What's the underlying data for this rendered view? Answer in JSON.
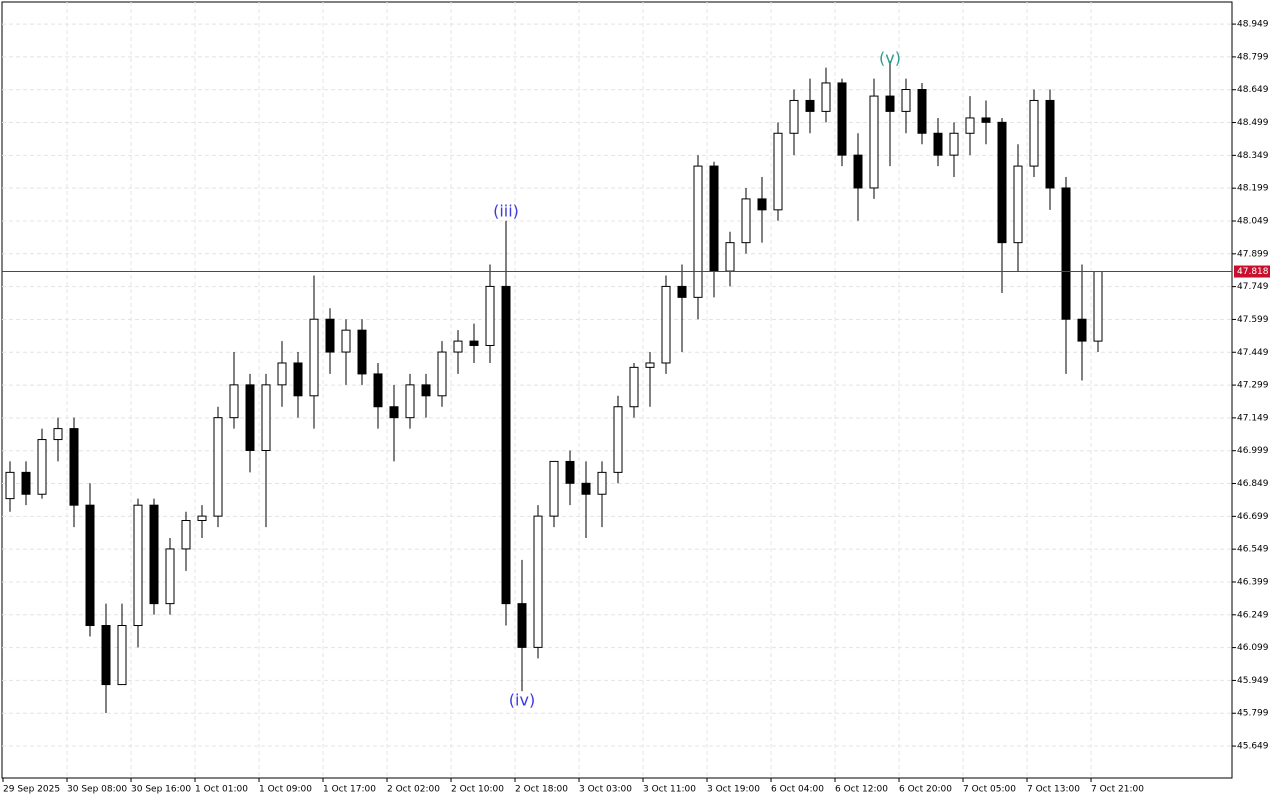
{
  "chart_data": {
    "type": "candlestick",
    "ylim": [
      45.503,
      49.05
    ],
    "yticks": [
      48.949,
      48.799,
      48.649,
      48.499,
      48.349,
      48.199,
      48.049,
      47.899,
      47.749,
      47.599,
      47.449,
      47.299,
      47.149,
      46.999,
      46.849,
      46.699,
      46.549,
      46.399,
      46.249,
      46.099,
      45.949,
      45.799,
      45.649
    ],
    "grid": true,
    "up_color": "#ffffff",
    "down_color": "#000000",
    "edge_color": "#000000",
    "time_labels": [
      "29 Sep 2025",
      "30 Sep 08:00",
      "30 Sep 16:00",
      "1 Oct 01:00",
      "1 Oct 09:00",
      "1 Oct 17:00",
      "2 Oct 02:00",
      "2 Oct 10:00",
      "2 Oct 18:00",
      "3 Oct 03:00",
      "3 Oct 11:00",
      "3 Oct 19:00",
      "6 Oct 04:00",
      "6 Oct 12:00",
      "6 Oct 20:00",
      "7 Oct 05:00",
      "7 Oct 13:00",
      "7 Oct 21:00"
    ],
    "current_price": 47.818,
    "current_price_color": "#c8102e",
    "annotations": [
      {
        "text": "(iii)",
        "at": 31,
        "value": 48.09,
        "color": "#3a3adf"
      },
      {
        "text": "(iv)",
        "at": 32,
        "value": 45.855,
        "color": "#3a3adf"
      },
      {
        "text": "(v)",
        "at": 55,
        "value": 48.79,
        "color": "#2a9d8f"
      }
    ],
    "ohlc": [
      [
        46.78,
        46.95,
        46.72,
        46.9
      ],
      [
        46.9,
        46.95,
        46.75,
        46.8
      ],
      [
        46.8,
        47.1,
        46.78,
        47.05
      ],
      [
        47.05,
        47.15,
        46.95,
        47.1
      ],
      [
        47.1,
        47.15,
        46.65,
        46.75
      ],
      [
        46.75,
        46.85,
        46.15,
        46.2
      ],
      [
        46.2,
        46.3,
        45.8,
        45.93
      ],
      [
        45.93,
        46.3,
        45.93,
        46.2
      ],
      [
        46.2,
        46.78,
        46.1,
        46.75
      ],
      [
        46.75,
        46.78,
        46.25,
        46.3
      ],
      [
        46.3,
        46.6,
        46.25,
        46.55
      ],
      [
        46.55,
        46.72,
        46.45,
        46.68
      ],
      [
        46.68,
        46.75,
        46.6,
        46.7
      ],
      [
        46.7,
        47.2,
        46.65,
        47.15
      ],
      [
        47.15,
        47.45,
        47.1,
        47.3
      ],
      [
        47.3,
        47.35,
        46.9,
        47.0
      ],
      [
        47.0,
        47.35,
        46.65,
        47.3
      ],
      [
        47.3,
        47.5,
        47.2,
        47.4
      ],
      [
        47.4,
        47.45,
        47.15,
        47.25
      ],
      [
        47.25,
        47.8,
        47.1,
        47.6
      ],
      [
        47.6,
        47.65,
        47.35,
        47.45
      ],
      [
        47.45,
        47.6,
        47.3,
        47.55
      ],
      [
        47.55,
        47.6,
        47.3,
        47.35
      ],
      [
        47.35,
        47.4,
        47.1,
        47.2
      ],
      [
        47.2,
        47.3,
        46.95,
        47.15
      ],
      [
        47.15,
        47.35,
        47.1,
        47.3
      ],
      [
        47.3,
        47.35,
        47.15,
        47.25
      ],
      [
        47.25,
        47.5,
        47.2,
        47.45
      ],
      [
        47.45,
        47.55,
        47.35,
        47.5
      ],
      [
        47.5,
        47.58,
        47.4,
        47.48
      ],
      [
        47.48,
        47.85,
        47.4,
        47.75
      ],
      [
        47.75,
        48.05,
        46.2,
        46.3
      ],
      [
        46.3,
        46.5,
        45.9,
        46.1
      ],
      [
        46.1,
        46.75,
        46.05,
        46.7
      ],
      [
        46.7,
        46.95,
        46.65,
        46.95
      ],
      [
        46.95,
        47.0,
        46.75,
        46.85
      ],
      [
        46.85,
        46.95,
        46.6,
        46.8
      ],
      [
        46.8,
        46.95,
        46.65,
        46.9
      ],
      [
        46.9,
        47.25,
        46.85,
        47.2
      ],
      [
        47.2,
        47.4,
        47.15,
        47.38
      ],
      [
        47.38,
        47.45,
        47.2,
        47.4
      ],
      [
        47.4,
        47.8,
        47.35,
        47.75
      ],
      [
        47.75,
        47.85,
        47.45,
        47.7
      ],
      [
        47.7,
        48.35,
        47.6,
        48.3
      ],
      [
        48.3,
        48.32,
        47.7,
        47.82
      ],
      [
        47.82,
        48.0,
        47.75,
        47.95
      ],
      [
        47.95,
        48.2,
        47.9,
        48.15
      ],
      [
        48.15,
        48.25,
        47.95,
        48.1
      ],
      [
        48.1,
        48.5,
        48.05,
        48.45
      ],
      [
        48.45,
        48.65,
        48.35,
        48.6
      ],
      [
        48.6,
        48.7,
        48.45,
        48.55
      ],
      [
        48.55,
        48.75,
        48.5,
        48.68
      ],
      [
        48.68,
        48.7,
        48.3,
        48.35
      ],
      [
        48.35,
        48.45,
        48.05,
        48.2
      ],
      [
        48.2,
        48.7,
        48.15,
        48.62
      ],
      [
        48.62,
        48.78,
        48.3,
        48.55
      ],
      [
        48.55,
        48.7,
        48.45,
        48.65
      ],
      [
        48.65,
        48.68,
        48.4,
        48.45
      ],
      [
        48.45,
        48.52,
        48.3,
        48.35
      ],
      [
        48.35,
        48.5,
        48.25,
        48.45
      ],
      [
        48.45,
        48.62,
        48.35,
        48.52
      ],
      [
        48.52,
        48.6,
        48.4,
        48.5
      ],
      [
        48.5,
        48.52,
        47.72,
        47.95
      ],
      [
        47.95,
        48.4,
        47.82,
        48.3
      ],
      [
        48.3,
        48.65,
        48.25,
        48.6
      ],
      [
        48.6,
        48.65,
        48.1,
        48.2
      ],
      [
        48.2,
        48.25,
        47.35,
        47.6
      ],
      [
        47.6,
        47.85,
        47.32,
        47.5
      ],
      [
        47.5,
        47.82,
        47.45,
        47.818
      ]
    ]
  }
}
